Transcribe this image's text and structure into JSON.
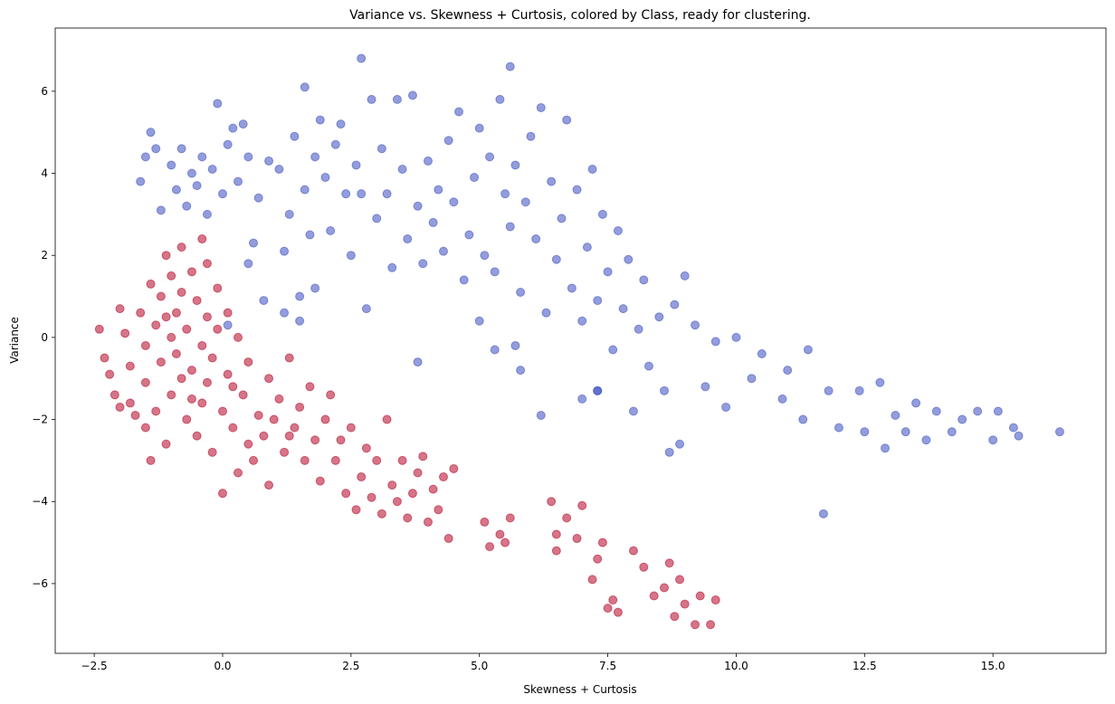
{
  "chart_data": {
    "type": "scatter",
    "title": "Variance vs. Skewness + Curtosis, colored by Class, ready for clustering.",
    "x_label": "Skewness + Curtosis",
    "y_label": "Variance",
    "xlim": [
      -3.26,
      17.2
    ],
    "ylim": [
      -7.7,
      7.54
    ],
    "xticks": [
      {
        "value": -2.5,
        "label": "−2.5"
      },
      {
        "value": 0,
        "label": "0.0"
      },
      {
        "value": 2.5,
        "label": "2.5"
      },
      {
        "value": 5,
        "label": "5.0"
      },
      {
        "value": 7.5,
        "label": "7.5"
      },
      {
        "value": 10,
        "label": "10.0"
      },
      {
        "value": 12.5,
        "label": "12.5"
      },
      {
        "value": 15,
        "label": "15.0"
      }
    ],
    "yticks": [
      {
        "value": -6,
        "label": "−6"
      },
      {
        "value": -4,
        "label": "−4"
      },
      {
        "value": -2,
        "label": "−2"
      },
      0,
      2,
      4,
      6
    ],
    "grid": false,
    "series": [
      {
        "color": "#3b4cc0",
        "x": [
          -1.6,
          -1.5,
          -1.4,
          -1.3,
          -1.2,
          -1.0,
          -0.9,
          -0.8,
          -0.7,
          -0.6,
          -0.5,
          -0.4,
          -0.3,
          -0.2,
          -0.1,
          0.0,
          0.1,
          0.2,
          0.3,
          0.4,
          0.5,
          0.5,
          0.6,
          0.7,
          0.9,
          1.1,
          1.2,
          1.3,
          1.4,
          1.5,
          1.6,
          1.6,
          1.7,
          1.8,
          1.8,
          1.9,
          2.0,
          2.1,
          2.2,
          2.3,
          2.4,
          2.5,
          2.6,
          2.7,
          2.7,
          2.8,
          2.9,
          3.0,
          3.1,
          3.2,
          3.3,
          3.4,
          3.5,
          3.6,
          3.7,
          3.8,
          3.8,
          3.9,
          4.0,
          4.1,
          4.2,
          4.3,
          4.4,
          4.5,
          4.6,
          4.7,
          4.8,
          4.9,
          5.0,
          5.0,
          5.1,
          5.2,
          5.3,
          5.3,
          5.4,
          5.5,
          5.6,
          5.6,
          5.7,
          5.8,
          5.8,
          5.9,
          6.0,
          6.1,
          6.2,
          6.2,
          6.3,
          6.4,
          6.5,
          6.6,
          6.7,
          6.8,
          6.9,
          7.0,
          7.0,
          7.1,
          7.2,
          7.3,
          7.3,
          7.4,
          7.5,
          7.6,
          7.7,
          7.8,
          7.9,
          8.0,
          8.1,
          8.2,
          8.3,
          8.5,
          8.6,
          8.7,
          8.8,
          8.9,
          9.0,
          9.2,
          9.4,
          9.6,
          9.8,
          10.0,
          10.3,
          10.5,
          10.9,
          11.0,
          11.3,
          11.4,
          11.7,
          11.8,
          12.0,
          12.4,
          12.5,
          12.8,
          12.9,
          13.1,
          13.3,
          13.5,
          13.7,
          13.9,
          14.2,
          14.4,
          14.7,
          15.0,
          15.1,
          15.4,
          15.5,
          16.3,
          0.8,
          1.2,
          1.5,
          0.1,
          5.7,
          7.3
        ],
        "values": [
          3.8,
          4.4,
          5.0,
          4.6,
          3.1,
          4.2,
          3.6,
          4.6,
          3.2,
          4.0,
          3.7,
          4.4,
          3.0,
          4.1,
          5.7,
          3.5,
          4.7,
          5.1,
          3.8,
          5.2,
          4.4,
          1.8,
          2.3,
          3.4,
          4.3,
          4.1,
          2.1,
          3.0,
          4.9,
          1.0,
          6.1,
          3.6,
          2.5,
          4.4,
          1.2,
          5.3,
          3.9,
          2.6,
          4.7,
          5.2,
          3.5,
          2.0,
          4.2,
          6.8,
          3.5,
          0.7,
          5.8,
          2.9,
          4.6,
          3.5,
          1.7,
          5.8,
          4.1,
          2.4,
          5.9,
          3.2,
          -0.6,
          1.8,
          4.3,
          2.8,
          3.6,
          2.1,
          4.8,
          3.3,
          5.5,
          1.4,
          2.5,
          3.9,
          0.4,
          5.1,
          2.0,
          4.4,
          1.6,
          -0.3,
          5.8,
          3.5,
          2.7,
          6.6,
          4.2,
          1.1,
          -0.8,
          3.3,
          4.9,
          2.4,
          5.6,
          -1.9,
          0.6,
          3.8,
          1.9,
          2.9,
          5.3,
          1.2,
          3.6,
          -1.5,
          0.4,
          2.2,
          4.1,
          -1.3,
          0.9,
          3.0,
          1.6,
          -0.3,
          2.6,
          0.7,
          1.9,
          -1.8,
          0.2,
          1.4,
          -0.7,
          0.5,
          -1.3,
          -2.8,
          0.8,
          -2.6,
          1.5,
          0.3,
          -1.2,
          -0.1,
          -1.7,
          0.0,
          -1.0,
          -0.4,
          -1.5,
          -0.8,
          -2.0,
          -0.3,
          -4.3,
          -1.3,
          -2.2,
          -1.3,
          -2.3,
          -1.1,
          -2.7,
          -1.9,
          -2.3,
          -1.6,
          -2.5,
          -1.8,
          -2.3,
          -2.0,
          -1.8,
          -2.5,
          -1.8,
          -2.2,
          -2.4,
          -2.3,
          0.9,
          0.6,
          0.4,
          0.3,
          -0.2,
          -1.3
        ]
      },
      {
        "color": "#b40426",
        "x": [
          -2.4,
          -2.3,
          -2.2,
          -2.1,
          -2.0,
          -1.9,
          -1.8,
          -1.8,
          -1.7,
          -1.6,
          -1.5,
          -1.5,
          -1.5,
          -1.4,
          -1.4,
          -1.3,
          -1.3,
          -1.2,
          -1.2,
          -1.1,
          -1.1,
          -1.0,
          -1.0,
          -1.0,
          -0.9,
          -0.9,
          -0.8,
          -0.8,
          -0.8,
          -0.7,
          -0.7,
          -0.6,
          -0.6,
          -0.5,
          -0.5,
          -0.4,
          -0.4,
          -0.4,
          -0.3,
          -0.3,
          -0.3,
          -0.2,
          -0.2,
          -0.1,
          -0.1,
          0.0,
          0.0,
          0.1,
          0.1,
          0.2,
          0.3,
          0.3,
          0.4,
          0.5,
          0.5,
          0.6,
          0.7,
          0.8,
          0.9,
          0.9,
          1.0,
          1.1,
          1.2,
          1.3,
          1.4,
          1.5,
          1.6,
          1.7,
          1.8,
          1.9,
          2.0,
          2.1,
          2.2,
          2.3,
          2.4,
          2.5,
          2.6,
          2.7,
          2.8,
          2.9,
          3.0,
          3.1,
          3.2,
          3.3,
          3.4,
          3.5,
          3.6,
          3.7,
          3.8,
          3.9,
          4.0,
          4.1,
          4.2,
          4.3,
          4.4,
          4.5,
          5.1,
          5.2,
          5.4,
          5.5,
          5.6,
          6.4,
          6.5,
          6.5,
          6.7,
          6.9,
          7.0,
          7.2,
          7.3,
          7.4,
          7.5,
          7.6,
          7.7,
          8.0,
          8.2,
          8.4,
          8.6,
          8.7,
          8.8,
          8.9,
          9.0,
          9.2,
          9.3,
          9.5,
          9.6,
          -1.1,
          -0.6,
          0.2,
          1.3,
          -2.0
        ],
        "values": [
          0.2,
          -0.5,
          -0.9,
          -1.4,
          0.7,
          0.1,
          -0.7,
          -1.6,
          -1.9,
          0.6,
          -0.2,
          -1.1,
          -2.2,
          1.3,
          -3.0,
          0.3,
          -1.8,
          1.0,
          -0.6,
          2.0,
          -2.6,
          1.5,
          0.0,
          -1.4,
          0.6,
          -0.4,
          2.2,
          1.1,
          -1.0,
          -2.0,
          0.2,
          1.6,
          -0.8,
          -2.4,
          0.9,
          2.4,
          -0.2,
          -1.6,
          1.8,
          0.5,
          -1.1,
          -2.8,
          -0.5,
          1.2,
          0.2,
          -1.8,
          -3.8,
          -0.9,
          0.6,
          -2.2,
          0.0,
          -3.3,
          -1.4,
          -2.6,
          -0.6,
          -3.0,
          -1.9,
          -2.4,
          -1.0,
          -3.6,
          -2.0,
          -1.5,
          -2.8,
          -0.5,
          -2.2,
          -1.7,
          -3.0,
          -1.2,
          -2.5,
          -3.5,
          -2.0,
          -1.4,
          -3.0,
          -2.5,
          -3.8,
          -2.2,
          -4.2,
          -3.4,
          -2.7,
          -3.9,
          -3.0,
          -4.3,
          -2.0,
          -3.6,
          -4.0,
          -3.0,
          -4.4,
          -3.8,
          -3.3,
          -2.9,
          -4.5,
          -3.7,
          -4.2,
          -3.4,
          -4.9,
          -3.2,
          -4.5,
          -5.1,
          -4.8,
          -5.0,
          -4.4,
          -4.0,
          -4.8,
          -5.2,
          -4.4,
          -4.9,
          -4.1,
          -5.9,
          -5.4,
          -5.0,
          -6.6,
          -6.4,
          -6.7,
          -5.2,
          -5.6,
          -6.3,
          -6.1,
          -5.5,
          -6.8,
          -5.9,
          -6.5,
          -7.0,
          -6.3,
          -7.0,
          -6.4,
          0.5,
          -1.5,
          -1.2,
          -2.4,
          -1.7
        ]
      }
    ]
  }
}
